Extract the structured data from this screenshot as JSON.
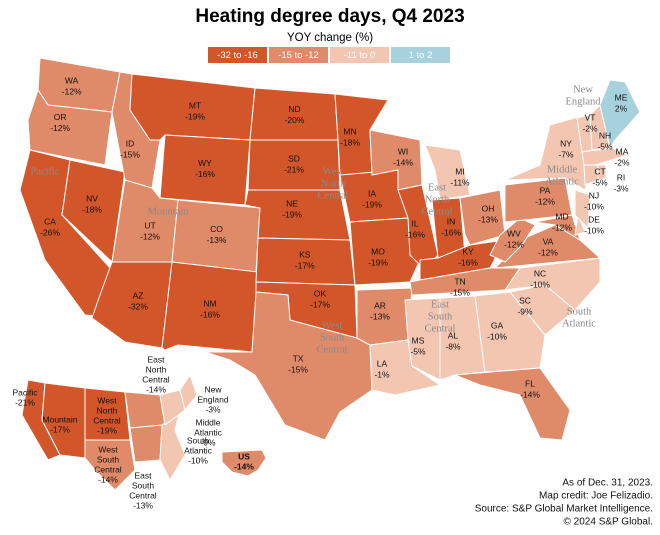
{
  "title": "Heating degree days, Q4 2023",
  "subtitle": "YOY change (%)",
  "legend": [
    {
      "label": "-32 to -16",
      "color": "#d2562a"
    },
    {
      "label": "-15 to -12",
      "color": "#df8a68"
    },
    {
      "label": "-11 to 0",
      "color": "#f3c6b2"
    },
    {
      "label": "1 to 2",
      "color": "#a8d1de"
    }
  ],
  "states": [
    {
      "abbr": "WA",
      "change": "-12%",
      "color": "#df8a68"
    },
    {
      "abbr": "OR",
      "change": "-12%",
      "color": "#df8a68"
    },
    {
      "abbr": "CA",
      "change": "-26%",
      "color": "#d2562a"
    },
    {
      "abbr": "NV",
      "change": "-18%",
      "color": "#d2562a"
    },
    {
      "abbr": "ID",
      "change": "-15%",
      "color": "#df8a68"
    },
    {
      "abbr": "MT",
      "change": "-19%",
      "color": "#d2562a"
    },
    {
      "abbr": "WY",
      "change": "-16%",
      "color": "#d2562a"
    },
    {
      "abbr": "UT",
      "change": "-12%",
      "color": "#df8a68"
    },
    {
      "abbr": "CO",
      "change": "-13%",
      "color": "#df8a68"
    },
    {
      "abbr": "AZ",
      "change": "-32%",
      "color": "#d2562a"
    },
    {
      "abbr": "NM",
      "change": "-16%",
      "color": "#d2562a"
    },
    {
      "abbr": "ND",
      "change": "-20%",
      "color": "#d2562a"
    },
    {
      "abbr": "SD",
      "change": "-21%",
      "color": "#d2562a"
    },
    {
      "abbr": "NE",
      "change": "-19%",
      "color": "#d2562a"
    },
    {
      "abbr": "KS",
      "change": "-17%",
      "color": "#d2562a"
    },
    {
      "abbr": "OK",
      "change": "-17%",
      "color": "#d2562a"
    },
    {
      "abbr": "TX",
      "change": "-15%",
      "color": "#df8a68"
    },
    {
      "abbr": "MN",
      "change": "-18%",
      "color": "#d2562a"
    },
    {
      "abbr": "IA",
      "change": "-19%",
      "color": "#d2562a"
    },
    {
      "abbr": "MO",
      "change": "-19%",
      "color": "#d2562a"
    },
    {
      "abbr": "AR",
      "change": "-13%",
      "color": "#df8a68"
    },
    {
      "abbr": "LA",
      "change": "-1%",
      "color": "#f3c6b2"
    },
    {
      "abbr": "WI",
      "change": "-14%",
      "color": "#df8a68"
    },
    {
      "abbr": "IL",
      "change": "-16%",
      "color": "#d2562a"
    },
    {
      "abbr": "MI",
      "change": "-11%",
      "color": "#f3c6b2"
    },
    {
      "abbr": "IN",
      "change": "-16%",
      "color": "#d2562a"
    },
    {
      "abbr": "OH",
      "change": "-13%",
      "color": "#df8a68"
    },
    {
      "abbr": "KY",
      "change": "-16%",
      "color": "#d2562a"
    },
    {
      "abbr": "TN",
      "change": "-15%",
      "color": "#df8a68"
    },
    {
      "abbr": "MS",
      "change": "-5%",
      "color": "#f3c6b2"
    },
    {
      "abbr": "AL",
      "change": "-8%",
      "color": "#f3c6b2"
    },
    {
      "abbr": "GA",
      "change": "-10%",
      "color": "#f3c6b2"
    },
    {
      "abbr": "FL",
      "change": "-14%",
      "color": "#df8a68"
    },
    {
      "abbr": "SC",
      "change": "-9%",
      "color": "#f3c6b2"
    },
    {
      "abbr": "NC",
      "change": "-10%",
      "color": "#f3c6b2"
    },
    {
      "abbr": "VA",
      "change": "-12%",
      "color": "#df8a68"
    },
    {
      "abbr": "WV",
      "change": "-12%",
      "color": "#df8a68"
    },
    {
      "abbr": "PA",
      "change": "-12%",
      "color": "#df8a68"
    },
    {
      "abbr": "NY",
      "change": "-7%",
      "color": "#f3c6b2"
    },
    {
      "abbr": "MD",
      "change": "-12%",
      "color": "#df8a68"
    },
    {
      "abbr": "DE",
      "change": "-10%",
      "color": "#f3c6b2"
    },
    {
      "abbr": "NJ",
      "change": "-10%",
      "color": "#f3c6b2"
    },
    {
      "abbr": "VT",
      "change": "-2%",
      "color": "#f3c6b2"
    },
    {
      "abbr": "NH",
      "change": "-5%",
      "color": "#f3c6b2"
    },
    {
      "abbr": "ME",
      "change": "2%",
      "color": "#a8d1de"
    },
    {
      "abbr": "MA",
      "change": "-2%",
      "color": "#f3c6b2"
    },
    {
      "abbr": "CT",
      "change": "-5%",
      "color": "#f3c6b2"
    },
    {
      "abbr": "RI",
      "change": "-3%",
      "color": "#f3c6b2"
    }
  ],
  "regions": [
    {
      "lines": [
        "Pacific"
      ]
    },
    {
      "lines": [
        "Mountain"
      ]
    },
    {
      "lines": [
        "West",
        "North",
        "Central"
      ]
    },
    {
      "lines": [
        "East",
        "North",
        "Central"
      ]
    },
    {
      "lines": [
        "New",
        "England"
      ]
    },
    {
      "lines": [
        "Middle",
        "Atlantic"
      ]
    },
    {
      "lines": [
        "West",
        "South",
        "Central"
      ]
    },
    {
      "lines": [
        "East",
        "South",
        "Central"
      ]
    },
    {
      "lines": [
        "South",
        "Atlantic"
      ]
    }
  ],
  "inset": {
    "regions": [
      {
        "lines": [
          "Pacific"
        ],
        "change": "-21%",
        "color": "#d2562a"
      },
      {
        "lines": [
          "Mountain"
        ],
        "change": "-17%",
        "color": "#d2562a"
      },
      {
        "lines": [
          "West",
          "North",
          "Central"
        ],
        "change": "-19%",
        "color": "#d2562a"
      },
      {
        "lines": [
          "West",
          "South",
          "Central"
        ],
        "change": "-14%",
        "color": "#df8a68"
      },
      {
        "lines": [
          "East",
          "North",
          "Central"
        ],
        "change": "-14%",
        "color": "#df8a68"
      },
      {
        "lines": [
          "East",
          "South",
          "Central"
        ],
        "change": "-13%",
        "color": "#df8a68"
      },
      {
        "lines": [
          "South",
          "Atlantic"
        ],
        "change": "-10%",
        "color": "#f3c6b2"
      },
      {
        "lines": [
          "Middle",
          "Atlantic"
        ],
        "change": "-9%",
        "color": "#f3c6b2"
      },
      {
        "lines": [
          "New",
          "England"
        ],
        "change": "-3%",
        "color": "#f3c6b2"
      }
    ],
    "us": {
      "abbr": "US",
      "change": "-14%",
      "color": "#df8a68"
    }
  },
  "notes": [
    "As of Dec. 31, 2023.",
    "Map credit: Joe Felizadio.",
    "Source: S&P Global Market Intelligence.",
    "© 2024 S&P Global."
  ]
}
